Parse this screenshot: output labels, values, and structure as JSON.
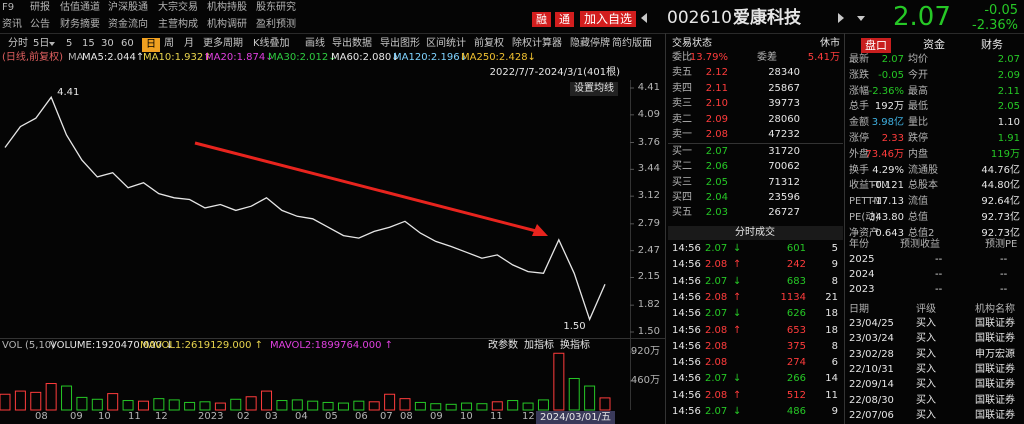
{
  "nav": {
    "row1": [
      "F9",
      "研报",
      "估值通道",
      "沪深股通",
      "大宗交易",
      "机构持股",
      "股东研究"
    ],
    "row2": [
      "资讯",
      "公告",
      "财务摘要",
      "资金流向",
      "主营构成",
      "机构调研",
      "盈利预测"
    ]
  },
  "header": {
    "badges": [
      "融",
      "通"
    ],
    "add_button": "加入自选",
    "code": "002610",
    "name": "爱康科技",
    "price": "2.07",
    "change": "-0.05",
    "change_pct": "-2.36%"
  },
  "toolbar": {
    "items": [
      "分时",
      "5日",
      "5",
      "15",
      "30",
      "60",
      "日",
      "周",
      "月",
      "更多周期",
      "K线叠加",
      "画线",
      "导出数据",
      "导出图形",
      "区间统计",
      "前复权",
      "除权计算器",
      "隐藏停牌",
      "简约版面"
    ],
    "active": 6
  },
  "ma": {
    "mode": "(日线,前复权)",
    "label": "MA",
    "items": [
      {
        "text": "MA5:2.044↑",
        "color": "#e6e6e6"
      },
      {
        "text": "MA10:1.932↑",
        "color": "#e8d44d"
      },
      {
        "text": "MA20:1.874↓",
        "color": "#e040e0"
      },
      {
        "text": "MA30:2.012↓",
        "color": "#2ecc40"
      },
      {
        "text": "MA60:2.080↓",
        "color": "#e6e6e6"
      },
      {
        "text": "MA120:2.196↓",
        "color": "#7fd3ff"
      },
      {
        "text": "MA250:2.428↓",
        "color": "#f0c030"
      }
    ]
  },
  "chart": {
    "type": "line",
    "range": "2022/7/7-2024/3/1(401根)",
    "button": "设置均线",
    "color": "#e6e6e6",
    "values": [
      3.7,
      3.95,
      4.05,
      4.3,
      3.85,
      3.55,
      3.35,
      3.4,
      3.22,
      3.28,
      3.15,
      3.1,
      3.08,
      2.98,
      3.02,
      2.95,
      3.0,
      3.1,
      2.95,
      2.88,
      2.85,
      2.75,
      2.65,
      2.62,
      2.7,
      2.75,
      2.82,
      2.68,
      2.58,
      2.52,
      2.45,
      2.38,
      2.42,
      2.3,
      2.22,
      2.2,
      2.6,
      2.2,
      1.65,
      2.07
    ],
    "ylim": [
      1.5,
      4.41
    ],
    "yticks": [
      4.41,
      4.09,
      3.76,
      3.44,
      3.12,
      2.79,
      2.47,
      2.15,
      1.82,
      {
        "value": 1.5,
        "label": "1.50"
      }
    ],
    "high_label": "4.41",
    "low_label": "1.50",
    "x_labels": [
      "08",
      "09",
      "10",
      "11",
      "12",
      "2023",
      "02",
      "03",
      "04",
      "05",
      "06",
      "07",
      "08",
      "09",
      "10",
      "11",
      "12",
      "2024/03/01/五"
    ],
    "volume": {
      "header": [
        "VOL",
        "(5,10)",
        "VOLUME:1920470.000 ↓",
        "MAVOL1:2619129.000 ↑",
        "MAVOL2:1899764.000 ↑"
      ],
      "buttons": [
        "改参数",
        "加指标",
        "换指标"
      ],
      "values": [
        250,
        300,
        280,
        420,
        380,
        200,
        170,
        260,
        150,
        140,
        180,
        160,
        120,
        130,
        110,
        170,
        210,
        300,
        150,
        160,
        140,
        120,
        110,
        140,
        130,
        250,
        180,
        120,
        100,
        90,
        110,
        100,
        130,
        150,
        110,
        160,
        900,
        500,
        380,
        192
      ],
      "ylim": [
        0,
        920
      ],
      "yticks": [
        {
          "value": 920,
          "label": "920万"
        },
        {
          "value": 460,
          "label": "460万"
        }
      ],
      "up_color": "#ff3c3c",
      "down_color": "#26c826"
    }
  },
  "order_book": {
    "title": "交易状态",
    "status": "休市",
    "ratio_label": "委比",
    "ratio": "13.79%",
    "diff_label": "委差",
    "diff": "5.41万",
    "asks": [
      [
        "卖五",
        "2.12",
        "28340"
      ],
      [
        "卖四",
        "2.11",
        "25867"
      ],
      [
        "卖三",
        "2.10",
        "39773"
      ],
      [
        "卖二",
        "2.09",
        "28060"
      ],
      [
        "卖一",
        "2.08",
        "47232"
      ]
    ],
    "bids": [
      [
        "买一",
        "2.07",
        "31720"
      ],
      [
        "买二",
        "2.06",
        "70062"
      ],
      [
        "买三",
        "2.05",
        "71312"
      ],
      [
        "买四",
        "2.04",
        "23596"
      ],
      [
        "买五",
        "2.03",
        "26727"
      ]
    ]
  },
  "trades": {
    "title": "分时成交",
    "rows": [
      {
        "time": "14:56",
        "price": "2.07",
        "arrow": "↓",
        "volume": "601",
        "count": "5",
        "color": "#26c826"
      },
      {
        "time": "14:56",
        "price": "2.08",
        "arrow": "↑",
        "volume": "242",
        "count": "9",
        "color": "#ff3c3c"
      },
      {
        "time": "14:56",
        "price": "2.07",
        "arrow": "↓",
        "volume": "683",
        "count": "8",
        "color": "#26c826"
      },
      {
        "time": "14:56",
        "price": "2.08",
        "arrow": "↑",
        "volume": "1134",
        "count": "21",
        "color": "#ff3c3c"
      },
      {
        "time": "14:56",
        "price": "2.07",
        "arrow": "↓",
        "volume": "626",
        "count": "18",
        "color": "#26c826"
      },
      {
        "time": "14:56",
        "price": "2.08",
        "arrow": "↑",
        "volume": "653",
        "count": "18",
        "color": "#ff3c3c"
      },
      {
        "time": "14:56",
        "price": "2.08",
        "volume": "375",
        "count": "8",
        "color": "#ff3c3c"
      },
      {
        "time": "14:56",
        "price": "2.08",
        "volume": "274",
        "count": "6",
        "color": "#ff3c3c"
      },
      {
        "time": "14:56",
        "price": "2.07",
        "arrow": "↓",
        "volume": "266",
        "count": "14",
        "color": "#26c826"
      },
      {
        "time": "14:56",
        "price": "2.08",
        "arrow": "↑",
        "volume": "512",
        "count": "11",
        "color": "#ff3c3c"
      },
      {
        "time": "14:56",
        "price": "2.07",
        "arrow": "↓",
        "volume": "486",
        "count": "9",
        "color": "#26c826"
      }
    ]
  },
  "quote": {
    "tabs": [
      "盘口",
      "资金",
      "财务"
    ],
    "rows": [
      [
        "最新",
        "2.07",
        "均价",
        "2.07"
      ],
      [
        "涨跌",
        "-0.05",
        "今开",
        "2.09"
      ],
      [
        "涨幅",
        "-2.36%",
        "最高",
        "2.11"
      ],
      [
        "总手",
        "192万",
        "最低",
        "2.05"
      ],
      [
        "金额",
        "3.98亿",
        "量比",
        "1.10"
      ],
      [
        "涨停",
        "2.33",
        "跌停",
        "1.91"
      ],
      [
        "外盘",
        "73.46万",
        "内盘",
        "119万"
      ],
      [
        "换手",
        "4.29%",
        "流通股",
        "44.76亿"
      ],
      [
        "收益TTM",
        "-0.121",
        "总股本",
        "44.80亿"
      ],
      [
        "PETTM",
        "-17.13",
        "流值",
        "92.64亿"
      ],
      [
        "PE(动)",
        "343.80",
        "总值",
        "92.73亿"
      ],
      [
        "净资产",
        "0.643",
        "总值2",
        "92.73亿"
      ]
    ],
    "value_colors": [
      [
        "#26c826",
        "#26c826"
      ],
      [
        "#26c826",
        "#26c826"
      ],
      [
        "#26c826",
        "#26c826"
      ],
      [
        "#e6e6e6",
        "#26c826"
      ],
      [
        "#3fb0e0",
        "#e6e6e6"
      ],
      [
        "#ff3c3c",
        "#26c826"
      ],
      [
        "#ff3c3c",
        "#26c826"
      ],
      [
        "#e6e6e6",
        "#e6e6e6"
      ],
      [
        "#e6e6e6",
        "#e6e6e6"
      ],
      [
        "#e6e6e6",
        "#e6e6e6"
      ],
      [
        "#e6e6e6",
        "#e6e6e6"
      ],
      [
        "#e6e6e6",
        "#e6e6e6"
      ]
    ]
  },
  "forecast": {
    "header": [
      "年份",
      "预测收益",
      "预测PE"
    ],
    "rows": [
      [
        "2025",
        "--",
        "--"
      ],
      [
        "2024",
        "--",
        "--"
      ],
      [
        "2023",
        "--",
        "--"
      ]
    ]
  },
  "ratings": {
    "header": [
      "日期",
      "评级",
      "机构名称"
    ],
    "rows": [
      [
        "23/04/25",
        "买入",
        "国联证券"
      ],
      [
        "23/03/24",
        "买入",
        "国联证券"
      ],
      [
        "23/02/28",
        "买入",
        "申万宏源"
      ],
      [
        "22/10/31",
        "买入",
        "国联证券"
      ],
      [
        "22/09/14",
        "买入",
        "国联证券"
      ],
      [
        "22/08/30",
        "买入",
        "国联证券"
      ],
      [
        "22/07/06",
        "买入",
        "国联证券"
      ]
    ]
  }
}
